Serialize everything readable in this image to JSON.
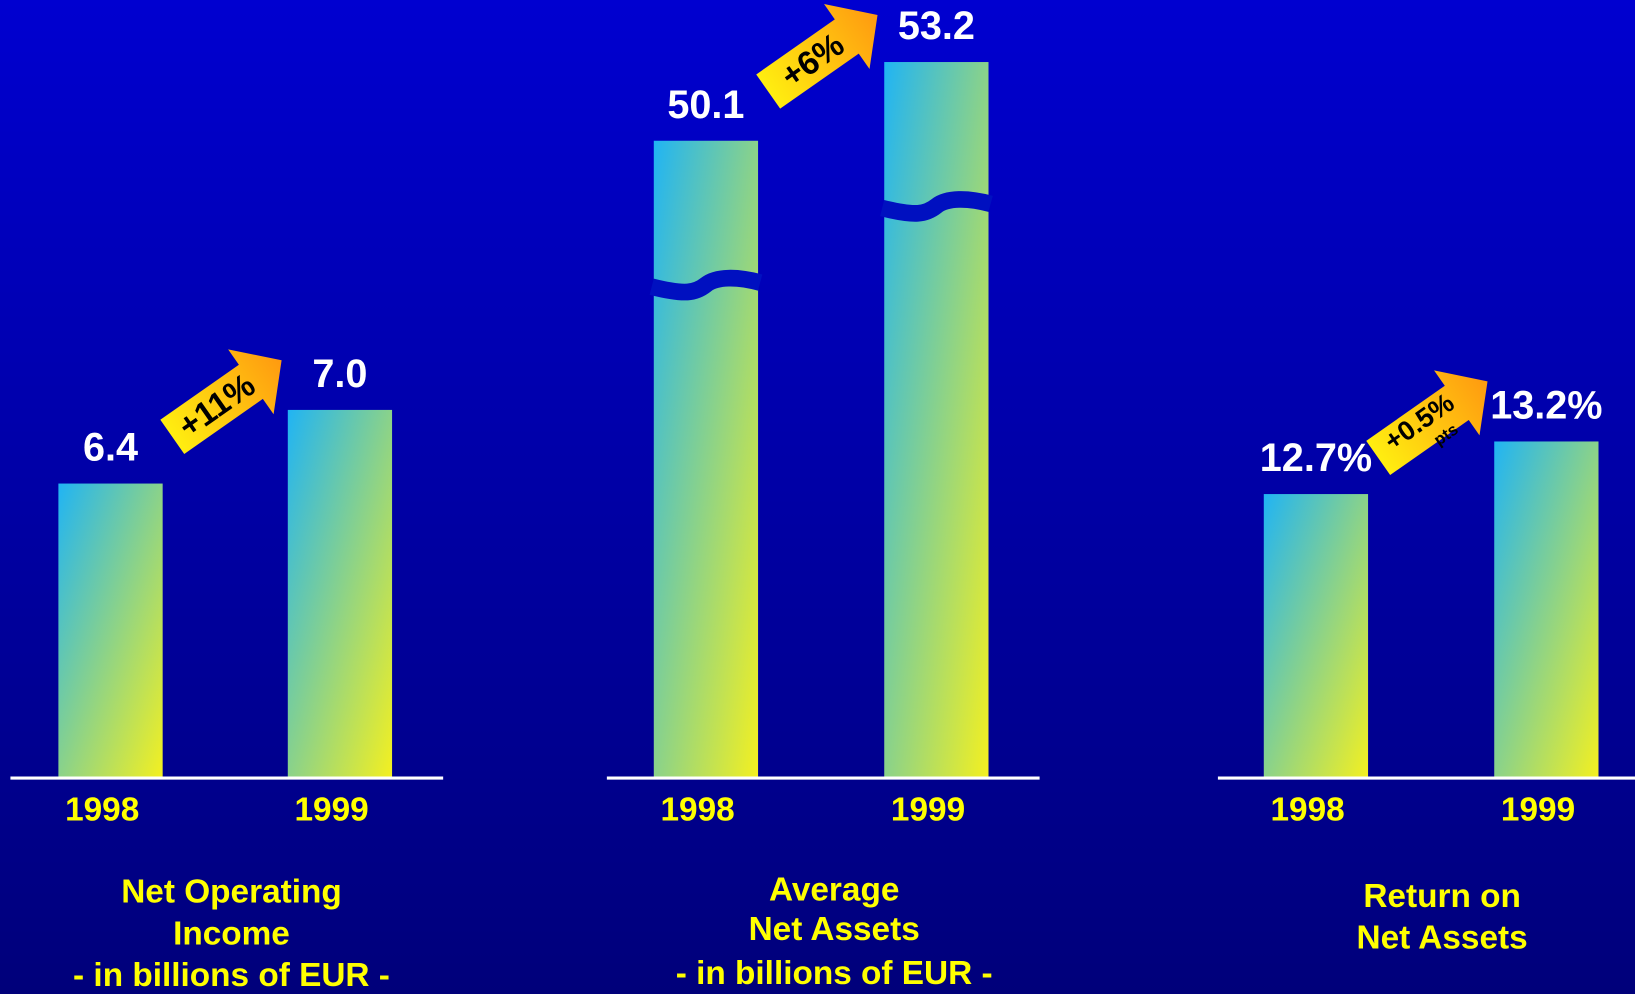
{
  "chart_data": [
    {
      "type": "bar",
      "title": [
        "Net Operating",
        "Income"
      ],
      "subtitle": "- in billions of EUR -",
      "categories": [
        "1998",
        "1999"
      ],
      "values": [
        6.4,
        7.0
      ],
      "value_labels": [
        "6.4",
        "7.0"
      ],
      "annotation": "+11%",
      "ylim": [
        4,
        10
      ],
      "colors": [
        "#20b4f4",
        "#f4f020"
      ]
    },
    {
      "type": "bar",
      "title": [
        "Average",
        "Net Assets"
      ],
      "subtitle": "- in billions of EUR -",
      "categories": [
        "1998",
        "1999"
      ],
      "values": [
        50.1,
        53.2
      ],
      "value_labels": [
        "50.1",
        "53.2"
      ],
      "annotation": "+6%",
      "axis_break": true,
      "ylim": [
        25,
        54
      ],
      "colors": [
        "#20b4f4",
        "#f4f020"
      ]
    },
    {
      "type": "bar",
      "title": [
        "Return on",
        "Net Assets"
      ],
      "categories": [
        "1998",
        "1999"
      ],
      "values": [
        12.7,
        13.2
      ],
      "value_labels": [
        "12.7%",
        "13.2%"
      ],
      "annotation": "+0.5%",
      "annotation_note": "pts",
      "ylim": [
        10,
        17
      ],
      "colors": [
        "#20b4f4",
        "#f4f020"
      ]
    }
  ]
}
